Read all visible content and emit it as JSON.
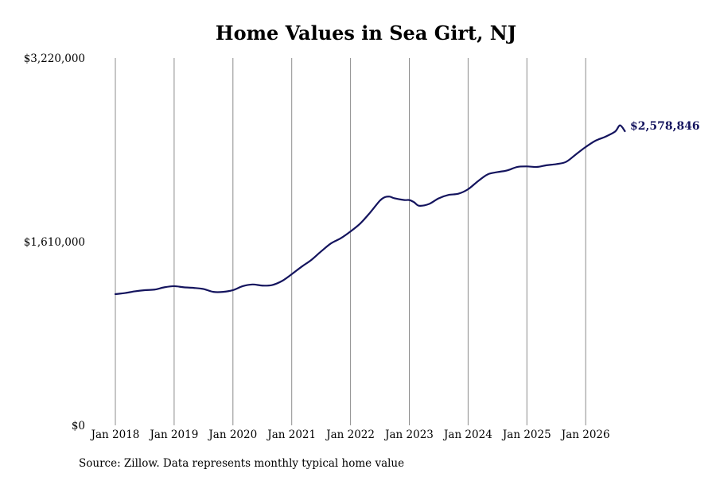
{
  "chart_data": {
    "type": "line",
    "title": "Home Values in Sea Girt, NJ",
    "xlabel": "",
    "ylabel": "",
    "ylim": [
      0,
      3220000
    ],
    "y_ticks": [
      {
        "value": 0,
        "label": "$0"
      },
      {
        "value": 1610000,
        "label": "$1,610,000"
      },
      {
        "value": 3220000,
        "label": "$3,220,000"
      }
    ],
    "x_ticks": [
      {
        "date": "2018-01",
        "label": "Jan 2018"
      },
      {
        "date": "2019-01",
        "label": "Jan 2019"
      },
      {
        "date": "2020-01",
        "label": "Jan 2020"
      },
      {
        "date": "2021-01",
        "label": "Jan 2021"
      },
      {
        "date": "2022-01",
        "label": "Jan 2022"
      },
      {
        "date": "2023-01",
        "label": "Jan 2023"
      },
      {
        "date": "2024-01",
        "label": "Jan 2024"
      },
      {
        "date": "2025-01",
        "label": "Jan 2025"
      },
      {
        "date": "2026-01",
        "label": "Jan 2026"
      }
    ],
    "grid": {
      "vertical": true,
      "horizontal": false
    },
    "line_color": "#14145e",
    "end_label": "$2,578,846",
    "source": "Source: Zillow. Data represents monthly typical home value",
    "series": [
      {
        "name": "",
        "points": [
          [
            "2018-01",
            1150000
          ],
          [
            "2018-03",
            1160000
          ],
          [
            "2018-05",
            1175000
          ],
          [
            "2018-07",
            1185000
          ],
          [
            "2018-09",
            1190000
          ],
          [
            "2018-11",
            1210000
          ],
          [
            "2019-01",
            1220000
          ],
          [
            "2019-03",
            1210000
          ],
          [
            "2019-05",
            1205000
          ],
          [
            "2019-07",
            1195000
          ],
          [
            "2019-09",
            1170000
          ],
          [
            "2019-11",
            1170000
          ],
          [
            "2020-01",
            1185000
          ],
          [
            "2020-03",
            1220000
          ],
          [
            "2020-05",
            1235000
          ],
          [
            "2020-07",
            1225000
          ],
          [
            "2020-09",
            1230000
          ],
          [
            "2020-11",
            1265000
          ],
          [
            "2021-01",
            1325000
          ],
          [
            "2021-03",
            1390000
          ],
          [
            "2021-05",
            1450000
          ],
          [
            "2021-07",
            1525000
          ],
          [
            "2021-09",
            1595000
          ],
          [
            "2021-11",
            1640000
          ],
          [
            "2022-01",
            1700000
          ],
          [
            "2022-03",
            1770000
          ],
          [
            "2022-05",
            1865000
          ],
          [
            "2022-07",
            1970000
          ],
          [
            "2022-08",
            2000000
          ],
          [
            "2022-09",
            2005000
          ],
          [
            "2022-10",
            1990000
          ],
          [
            "2022-12",
            1975000
          ],
          [
            "2023-01",
            1975000
          ],
          [
            "2023-02",
            1955000
          ],
          [
            "2023-03",
            1925000
          ],
          [
            "2023-05",
            1940000
          ],
          [
            "2023-07",
            1990000
          ],
          [
            "2023-09",
            2020000
          ],
          [
            "2023-11",
            2030000
          ],
          [
            "2024-01",
            2070000
          ],
          [
            "2024-03",
            2140000
          ],
          [
            "2024-05",
            2200000
          ],
          [
            "2024-07",
            2220000
          ],
          [
            "2024-09",
            2235000
          ],
          [
            "2024-11",
            2265000
          ],
          [
            "2025-01",
            2270000
          ],
          [
            "2025-03",
            2265000
          ],
          [
            "2025-05",
            2280000
          ],
          [
            "2025-07",
            2290000
          ],
          [
            "2025-09",
            2310000
          ],
          [
            "2025-11",
            2375000
          ],
          [
            "2026-01",
            2440000
          ],
          [
            "2026-03",
            2495000
          ],
          [
            "2026-05",
            2530000
          ],
          [
            "2026-07",
            2575000
          ],
          [
            "2026-08",
            2630000
          ],
          [
            "2026-09",
            2578846
          ]
        ]
      }
    ]
  }
}
